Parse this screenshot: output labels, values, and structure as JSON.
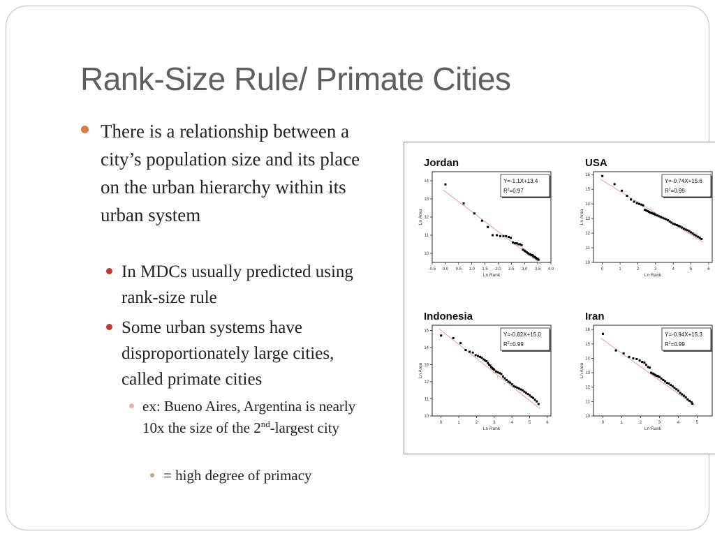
{
  "slide": {
    "title": "Rank-Size Rule/ Primate Cities",
    "bullet1": "There is a relationship between a city’s population size and its place on the urban hierarchy within its urban system",
    "bullet2a": "In MDCs usually predicted using rank-size rule",
    "bullet2b": "Some urban systems have disproportionately large cities, called primate cities",
    "bullet3_pre": "ex: Bueno Aires, Argentina is nearly 10x the size of the 2",
    "bullet3_sup": "nd",
    "bullet3_post": "-largest city",
    "bullet4": "= high degree of primacy"
  },
  "colors": {
    "title": "#5f5f5f",
    "bullet_l1": "#d97a4a",
    "bullet_l2": "#c0392b",
    "bullet_l3": "#e7b0aa",
    "bullet_l4": "#c4a57e",
    "regression_line": "#d9a6a0",
    "points": "#000000"
  },
  "chart_data": [
    {
      "type": "scatter",
      "title": "Jordan",
      "equation": "Y=-1.1X+13.4",
      "r2_label": "R",
      "r2_value": "=0.97",
      "xlabel": "Ln Rank",
      "ylabel": "Ln Area",
      "xlim": [
        -0.5,
        4.0
      ],
      "ylim": [
        9.5,
        14.5
      ],
      "xticks": [
        "-0.5",
        "0.0",
        "0.5",
        "1.0",
        "1.5",
        "2.0",
        "2.5",
        "3.0",
        "3.5",
        "4.0"
      ],
      "xtick_values": [
        -0.5,
        0,
        0.5,
        1,
        1.5,
        2,
        2.5,
        3,
        3.5,
        4
      ],
      "yticks": [
        "10",
        "11",
        "12",
        "13",
        "14"
      ],
      "ytick_values": [
        10,
        11,
        12,
        13,
        14
      ],
      "fit": {
        "slope": -1.1,
        "intercept": 13.4
      },
      "x": [
        0.0,
        0.69,
        1.1,
        1.39,
        1.61,
        1.79,
        1.95,
        2.08,
        2.2,
        2.3,
        2.4,
        2.48,
        2.56,
        2.64,
        2.71,
        2.77,
        2.83,
        2.89,
        2.94,
        3.0,
        3.04,
        3.09,
        3.14,
        3.18,
        3.22,
        3.26,
        3.3,
        3.33,
        3.37,
        3.4,
        3.43,
        3.47,
        3.5,
        3.53
      ],
      "y": [
        13.8,
        12.75,
        12.2,
        11.8,
        11.45,
        11.0,
        11.0,
        10.95,
        10.95,
        10.95,
        10.9,
        10.85,
        10.6,
        10.55,
        10.55,
        10.5,
        10.5,
        10.45,
        10.2,
        10.15,
        10.1,
        10.05,
        10.0,
        9.95,
        9.95,
        9.9,
        9.9,
        9.85,
        9.8,
        9.8,
        9.75,
        9.7,
        9.7,
        9.65
      ]
    },
    {
      "type": "scatter",
      "title": "USA",
      "equation": "Y=-0.74X+15.6",
      "r2_label": "R",
      "r2_value": "=0.99",
      "xlabel": "Ln Rank",
      "ylabel": "Ln Area",
      "xlim": [
        -0.5,
        6.2
      ],
      "ylim": [
        10,
        16.2
      ],
      "xticks": [
        "0",
        "1",
        "2",
        "3",
        "4",
        "5",
        "6"
      ],
      "xtick_values": [
        0,
        1,
        2,
        3,
        4,
        5,
        6
      ],
      "yticks": [
        "10",
        "11",
        "12",
        "13",
        "14",
        "15",
        "16"
      ],
      "ytick_values": [
        10,
        11,
        12,
        13,
        14,
        15,
        16
      ],
      "fit": {
        "slope": -0.74,
        "intercept": 15.6
      },
      "x": [
        0.0,
        0.69,
        1.1,
        1.39,
        1.61,
        1.79,
        1.95,
        2.08,
        2.2,
        2.3,
        2.4,
        2.48,
        2.56,
        2.64,
        2.71,
        2.77,
        2.83,
        2.89,
        2.94,
        3.0,
        3.1,
        3.2,
        3.3,
        3.4,
        3.5,
        3.6,
        3.7,
        3.8,
        3.9,
        4.0,
        4.1,
        4.2,
        4.3,
        4.4,
        4.5,
        4.6,
        4.7,
        4.8,
        4.9,
        5.0,
        5.1,
        5.2,
        5.3,
        5.4,
        5.5,
        5.6
      ],
      "y": [
        15.9,
        15.35,
        14.9,
        14.55,
        14.3,
        14.15,
        14.05,
        14.0,
        13.95,
        13.9,
        13.6,
        13.55,
        13.5,
        13.45,
        13.4,
        13.38,
        13.35,
        13.33,
        13.3,
        13.25,
        13.2,
        13.15,
        13.1,
        13.05,
        13.0,
        12.95,
        12.88,
        12.8,
        12.72,
        12.65,
        12.6,
        12.55,
        12.5,
        12.45,
        12.38,
        12.3,
        12.25,
        12.2,
        12.12,
        12.05,
        11.98,
        11.9,
        11.82,
        11.75,
        11.68,
        11.6
      ]
    },
    {
      "type": "scatter",
      "title": "Indonesia",
      "equation": "Y=-0.82X+15.0",
      "r2_label": "R",
      "r2_value": "=0.99",
      "xlabel": "Ln Rank",
      "ylabel": "Ln Area",
      "xlim": [
        -0.5,
        6.2
      ],
      "ylim": [
        10,
        15.3
      ],
      "xticks": [
        "0",
        "1",
        "2",
        "3",
        "4",
        "5",
        "6"
      ],
      "xtick_values": [
        0,
        1,
        2,
        3,
        4,
        5,
        6
      ],
      "yticks": [
        "10",
        "11",
        "12",
        "13",
        "14",
        "15"
      ],
      "ytick_values": [
        10,
        11,
        12,
        13,
        14,
        15
      ],
      "fit": {
        "slope": -0.82,
        "intercept": 15.0
      },
      "x": [
        0.0,
        0.69,
        1.1,
        1.39,
        1.61,
        1.79,
        1.95,
        2.08,
        2.2,
        2.3,
        2.4,
        2.48,
        2.56,
        2.64,
        2.71,
        2.77,
        2.83,
        2.89,
        2.94,
        3.0,
        3.1,
        3.2,
        3.3,
        3.4,
        3.5,
        3.6,
        3.7,
        3.8,
        3.9,
        4.0,
        4.1,
        4.2,
        4.3,
        4.4,
        4.5,
        4.6,
        4.7,
        4.8,
        4.9,
        5.0,
        5.1,
        5.2,
        5.3,
        5.4,
        5.5
      ],
      "y": [
        14.7,
        14.55,
        14.25,
        13.85,
        13.75,
        13.7,
        13.55,
        13.5,
        13.45,
        13.4,
        13.3,
        13.25,
        13.2,
        13.1,
        13.0,
        12.95,
        12.85,
        12.8,
        12.75,
        12.7,
        12.6,
        12.55,
        12.5,
        12.45,
        12.3,
        12.2,
        12.1,
        12.0,
        11.95,
        11.85,
        11.75,
        11.7,
        11.65,
        11.6,
        11.55,
        11.5,
        11.42,
        11.35,
        11.28,
        11.2,
        11.12,
        11.05,
        10.95,
        10.85,
        10.7
      ]
    },
    {
      "type": "scatter",
      "title": "Iran",
      "equation": "Y=-0.94X+15.3",
      "r2_label": "R",
      "r2_value": "=0.99",
      "xlabel": "Ln Rank",
      "ylabel": "Ln Area",
      "xlim": [
        -0.5,
        5.8
      ],
      "ylim": [
        10,
        16.3
      ],
      "xticks": [
        "0",
        "1",
        "2",
        "3",
        "4",
        "5"
      ],
      "xtick_values": [
        0,
        1,
        2,
        3,
        4,
        5
      ],
      "yticks": [
        "10",
        "11",
        "12",
        "13",
        "14",
        "15",
        "16"
      ],
      "ytick_values": [
        10,
        11,
        12,
        13,
        14,
        15,
        16
      ],
      "fit": {
        "slope": -0.94,
        "intercept": 15.3
      },
      "x": [
        0.0,
        0.69,
        1.1,
        1.39,
        1.61,
        1.79,
        1.95,
        2.08,
        2.2,
        2.3,
        2.4,
        2.48,
        2.56,
        2.64,
        2.71,
        2.77,
        2.83,
        2.89,
        2.94,
        3.0,
        3.1,
        3.2,
        3.3,
        3.4,
        3.5,
        3.6,
        3.7,
        3.8,
        3.9,
        4.0,
        4.1,
        4.2,
        4.3,
        4.4,
        4.5,
        4.6,
        4.7,
        4.75
      ],
      "y": [
        15.7,
        14.55,
        14.35,
        14.1,
        14.0,
        13.95,
        13.85,
        13.75,
        13.7,
        13.55,
        13.4,
        13.35,
        13.0,
        12.95,
        12.9,
        12.85,
        12.8,
        12.78,
        12.75,
        12.7,
        12.6,
        12.5,
        12.4,
        12.3,
        12.25,
        12.15,
        12.05,
        11.95,
        11.85,
        11.75,
        11.6,
        11.5,
        11.4,
        11.3,
        11.15,
        11.05,
        10.95,
        10.85
      ]
    }
  ]
}
